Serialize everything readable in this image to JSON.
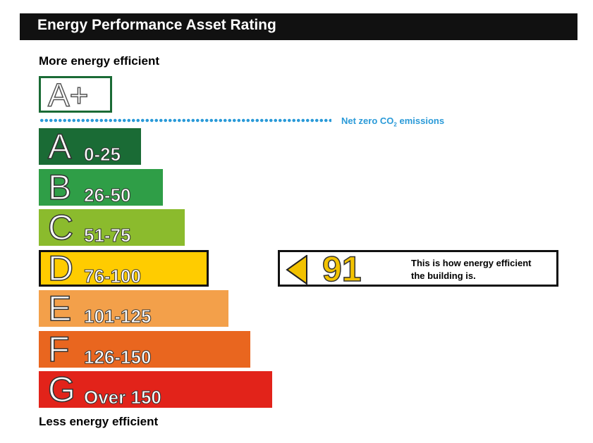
{
  "header": {
    "title": "Energy Performance Asset Rating"
  },
  "labels": {
    "top": "More energy efficient",
    "bottom": "Less energy efficient"
  },
  "aplus": {
    "label": "A+",
    "color": "#1a6b35"
  },
  "net_zero": {
    "text_prefix": "Net zero CO",
    "subscript": "2",
    "text_suffix": " emissions",
    "color": "#2a9ad8"
  },
  "chart_data": {
    "type": "bar",
    "title": "Energy Performance Asset Rating",
    "categories": [
      "A",
      "B",
      "C",
      "D",
      "E",
      "F",
      "G"
    ],
    "bands": [
      {
        "letter": "A",
        "range": "0-25",
        "color": "#1a6b35"
      },
      {
        "letter": "B",
        "range": "26-50",
        "color": "#2f9e47"
      },
      {
        "letter": "C",
        "range": "51-75",
        "color": "#8bbb2d"
      },
      {
        "letter": "D",
        "range": "76-100",
        "color": "#ffcc00"
      },
      {
        "letter": "E",
        "range": "101-125",
        "color": "#f3a04a"
      },
      {
        "letter": "F",
        "range": "126-150",
        "color": "#e9661f"
      },
      {
        "letter": "G",
        "range": "Over 150",
        "color": "#e2231a"
      }
    ],
    "current_rating": 91,
    "current_band": "D"
  },
  "rating": {
    "value": "91",
    "caption_line1": "This is how energy efficient",
    "caption_line2": "the building is.",
    "color": "#f2c200"
  }
}
